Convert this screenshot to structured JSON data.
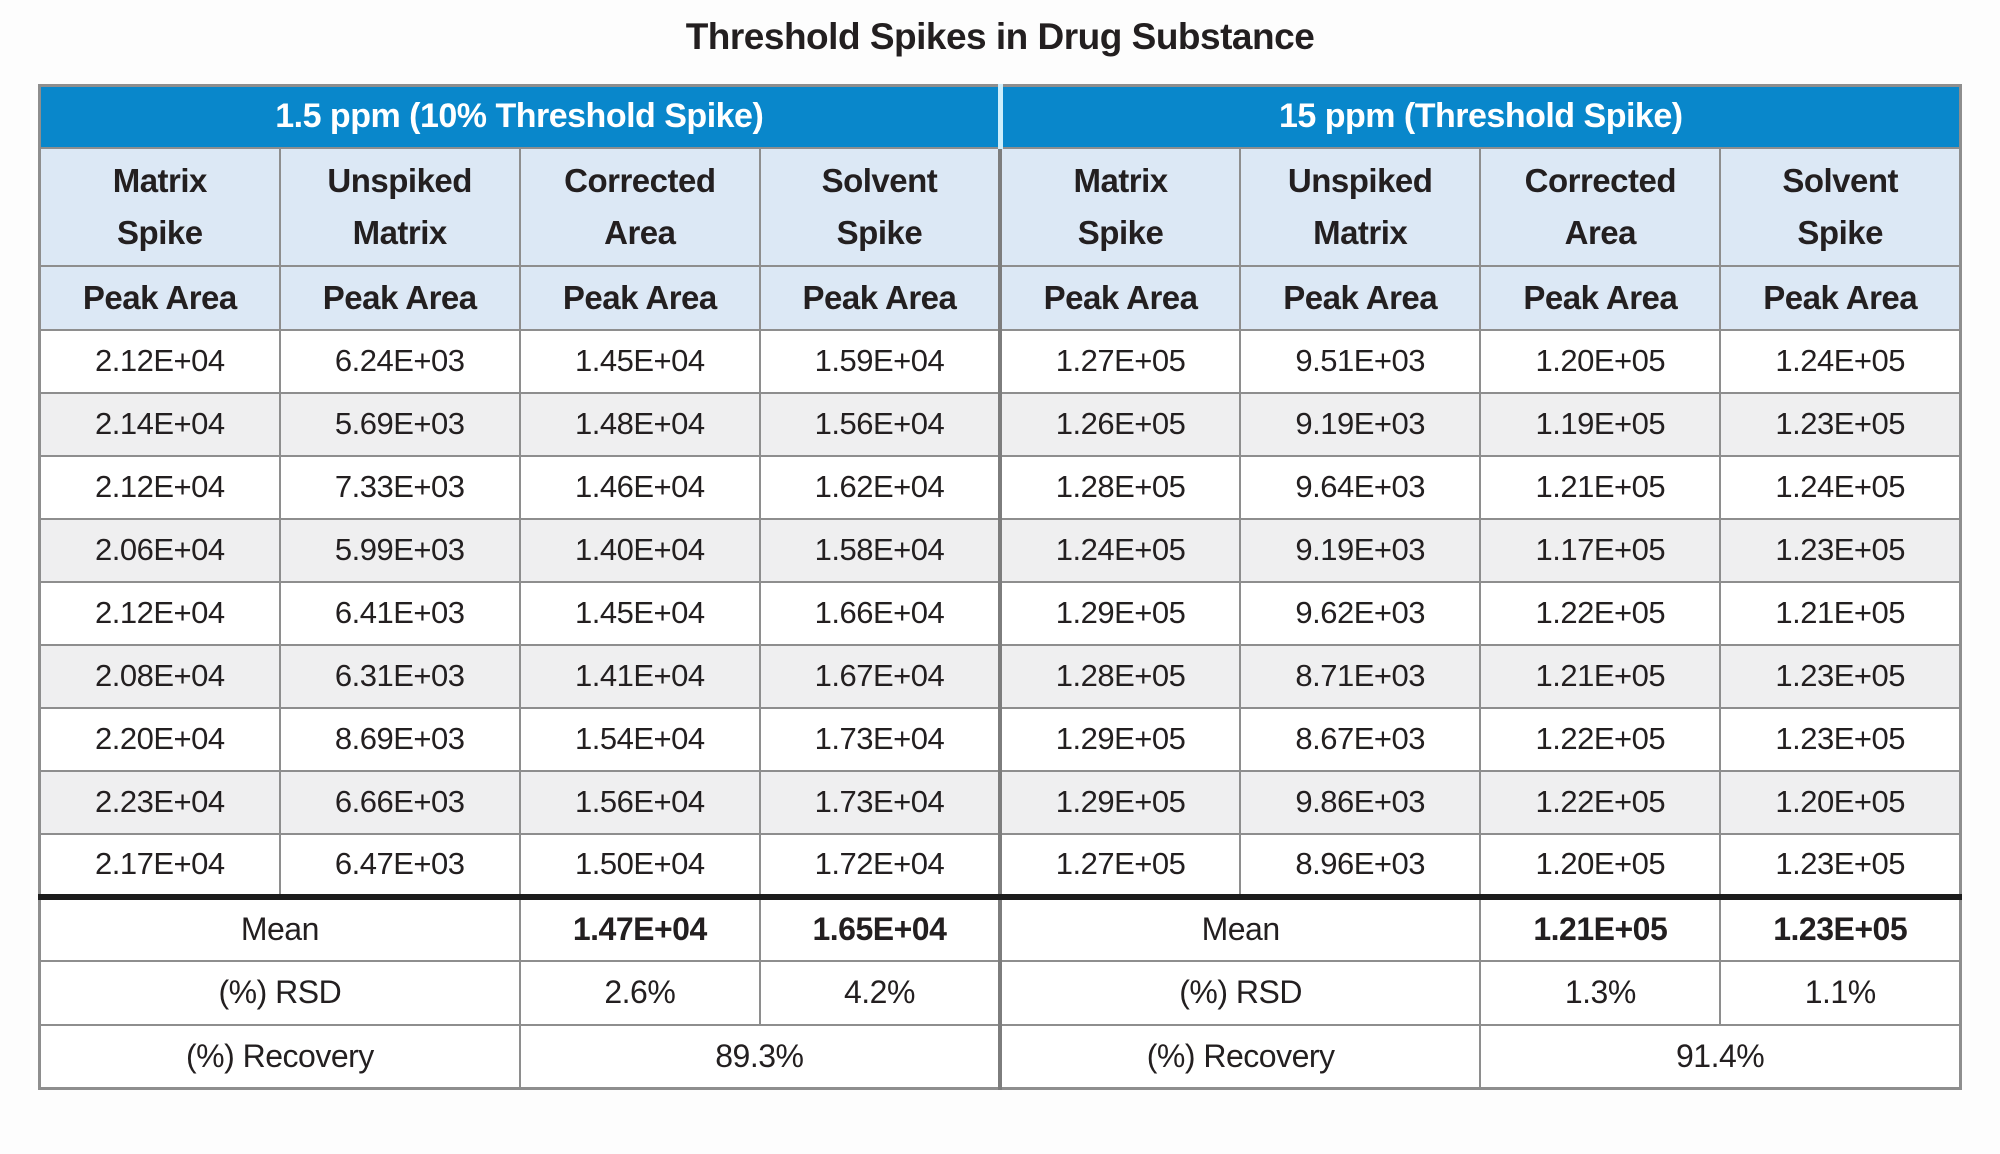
{
  "title": "Threshold Spikes in Drug Substance",
  "colors": {
    "group_header_blue": "#0987cb",
    "subheader_light_blue": "#dce8f5",
    "row_alternate_gray": "#efeff0",
    "border_gray": "#8e8e8e",
    "summary_rule_black": "#1c1c1c",
    "text": "#231f20",
    "group_header_text": "#ffffff"
  },
  "chart_data": {
    "type": "table",
    "title": "Threshold Spikes in Drug Substance",
    "column_groups": [
      {
        "label": "1.5 ppm (10% Threshold Spike)"
      },
      {
        "label": "15 ppm (Threshold Spike)"
      }
    ],
    "columns": [
      {
        "line1": "Matrix",
        "line2": "Spike"
      },
      {
        "line1": "Unspiked",
        "line2": "Matrix"
      },
      {
        "line1": "Corrected",
        "line2": "Area"
      },
      {
        "line1": "Solvent",
        "line2": "Spike"
      },
      {
        "line1": "Matrix",
        "line2": "Spike"
      },
      {
        "line1": "Unspiked",
        "line2": "Matrix"
      },
      {
        "line1": "Corrected",
        "line2": "Area"
      },
      {
        "line1": "Solvent",
        "line2": "Spike"
      }
    ],
    "unit_row": [
      "Peak Area",
      "Peak Area",
      "Peak Area",
      "Peak Area",
      "Peak Area",
      "Peak Area",
      "Peak Area",
      "Peak Area"
    ],
    "rows": [
      [
        "2.12E+04",
        "6.24E+03",
        "1.45E+04",
        "1.59E+04",
        "1.27E+05",
        "9.51E+03",
        "1.20E+05",
        "1.24E+05"
      ],
      [
        "2.14E+04",
        "5.69E+03",
        "1.48E+04",
        "1.56E+04",
        "1.26E+05",
        "9.19E+03",
        "1.19E+05",
        "1.23E+05"
      ],
      [
        "2.12E+04",
        "7.33E+03",
        "1.46E+04",
        "1.62E+04",
        "1.28E+05",
        "9.64E+03",
        "1.21E+05",
        "1.24E+05"
      ],
      [
        "2.06E+04",
        "5.99E+03",
        "1.40E+04",
        "1.58E+04",
        "1.24E+05",
        "9.19E+03",
        "1.17E+05",
        "1.23E+05"
      ],
      [
        "2.12E+04",
        "6.41E+03",
        "1.45E+04",
        "1.66E+04",
        "1.29E+05",
        "9.62E+03",
        "1.22E+05",
        "1.21E+05"
      ],
      [
        "2.08E+04",
        "6.31E+03",
        "1.41E+04",
        "1.67E+04",
        "1.28E+05",
        "8.71E+03",
        "1.21E+05",
        "1.23E+05"
      ],
      [
        "2.20E+04",
        "8.69E+03",
        "1.54E+04",
        "1.73E+04",
        "1.29E+05",
        "8.67E+03",
        "1.22E+05",
        "1.23E+05"
      ],
      [
        "2.23E+04",
        "6.66E+03",
        "1.56E+04",
        "1.73E+04",
        "1.29E+05",
        "9.86E+03",
        "1.22E+05",
        "1.20E+05"
      ],
      [
        "2.17E+04",
        "6.47E+03",
        "1.50E+04",
        "1.72E+04",
        "1.27E+05",
        "8.96E+03",
        "1.20E+05",
        "1.23E+05"
      ]
    ],
    "summary": {
      "mean": {
        "label": "Mean",
        "values": [
          "1.47E+04",
          "1.65E+04",
          "1.21E+05",
          "1.23E+05"
        ]
      },
      "rsd": {
        "label": "(%) RSD",
        "values": [
          "2.6%",
          "4.2%",
          "1.3%",
          "1.1%"
        ]
      },
      "recovery": {
        "label": "(%) Recovery",
        "values": [
          "89.3%",
          "91.4%"
        ]
      }
    }
  }
}
